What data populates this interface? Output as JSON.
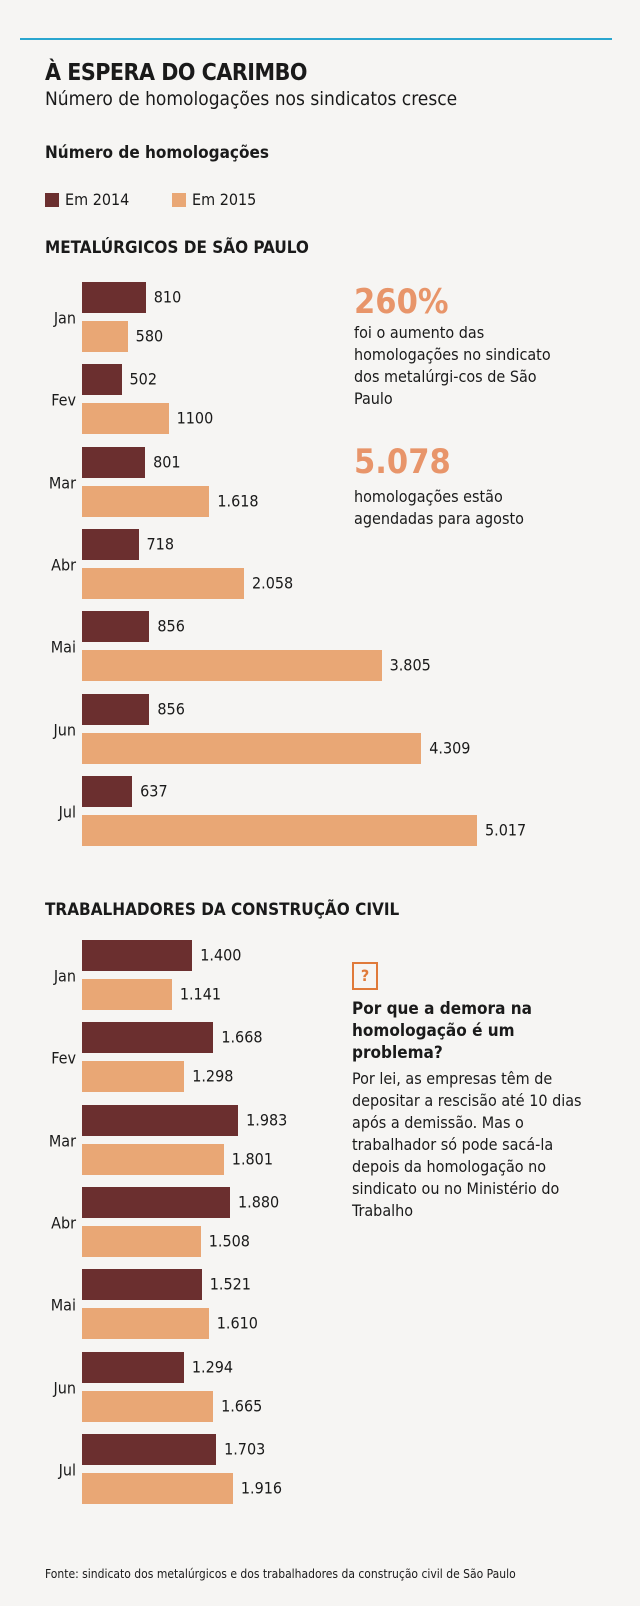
{
  "header": {
    "title": "À ESPERA DO CARIMBO",
    "subtitle": "Número de homologações nos sindicatos cresce",
    "chart_heading": "Número de homologações"
  },
  "colors": {
    "y2014": "#6b2f2f",
    "y2015": "#e9a775",
    "accent": "#e8956a",
    "rule": "#2aa6cf"
  },
  "chart_data": [
    {
      "type": "bar",
      "orientation": "horizontal",
      "title": "METALÚRGICOS DE SÃO PAULO",
      "categories": [
        "Jan",
        "Fev",
        "Mar",
        "Abr",
        "Mai",
        "Jun",
        "Jul"
      ],
      "series": [
        {
          "name": "Em 2014",
          "values": [
            810,
            502,
            801,
            718,
            856,
            856,
            637
          ],
          "labels": [
            "810",
            "502",
            "801",
            "718",
            "856",
            "856",
            "637"
          ]
        },
        {
          "name": "Em 2015",
          "values": [
            580,
            1100,
            1618,
            2058,
            3805,
            4309,
            5017
          ],
          "labels": [
            "580",
            "1100",
            "1.618",
            "2.058",
            "3.805",
            "4.309",
            "5.017"
          ]
        }
      ],
      "xlim": [
        0,
        5017
      ],
      "grid": false,
      "legend": "top-left"
    },
    {
      "type": "bar",
      "orientation": "horizontal",
      "title": "TRABALHADORES DA CONSTRUÇÃO CIVIL",
      "categories": [
        "Jan",
        "Fev",
        "Mar",
        "Abr",
        "Mai",
        "Jun",
        "Jul"
      ],
      "series": [
        {
          "name": "Em 2014",
          "values": [
            1400,
            1668,
            1983,
            1880,
            1521,
            1294,
            1703
          ],
          "labels": [
            "1.400",
            "1.668",
            "1.983",
            "1.880",
            "1.521",
            "1.294",
            "1.703"
          ]
        },
        {
          "name": "Em 2015",
          "values": [
            1141,
            1298,
            1801,
            1508,
            1610,
            1665,
            1916
          ],
          "labels": [
            "1.141",
            "1.298",
            "1.801",
            "1.508",
            "1.610",
            "1.665",
            "1.916"
          ]
        }
      ],
      "xlim": [
        0,
        5017
      ],
      "grid": false
    }
  ],
  "legend": [
    "Em 2014",
    "Em 2015"
  ],
  "facts": [
    {
      "value": "260%",
      "text": "foi o aumento das homologações no sindicato dos metalúrgi-cos de São Paulo"
    },
    {
      "value": "5.078",
      "text": "homologações estão agendadas para agosto"
    }
  ],
  "question": {
    "icon": "?",
    "title": "Por que a demora na homologação é um problema?",
    "body": "Por lei, as empresas têm de depositar a rescisão até 10 dias após a demissão. Mas o trabalhador só pode sacá-la depois da homologação no sindicato ou no Ministério do Trabalho"
  },
  "source": "Fonte: sindicato dos metalúrgicos e dos trabalhadores da construção civil de São Paulo"
}
